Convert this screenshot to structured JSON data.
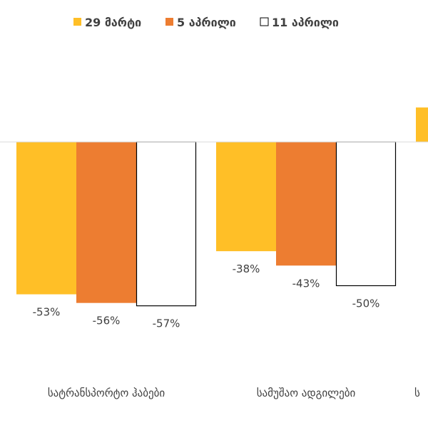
{
  "chart_data": {
    "type": "bar",
    "categories": [
      "სატრანსპორტო ჰაბები",
      "სამუშაო ადგილები",
      "ს"
    ],
    "series": [
      {
        "name": "29 მარტი",
        "color": "#FFBF27",
        "values": [
          -53,
          -38,
          12
        ],
        "labels": [
          "-53%",
          "-38%",
          ""
        ]
      },
      {
        "name": "5 აპრილი",
        "color": "#ED7D31",
        "values": [
          -56,
          -43,
          null
        ],
        "labels": [
          "-56%",
          "-43%",
          ""
        ]
      },
      {
        "name": "11 აპრილი",
        "color": "#FFFFFF",
        "values": [
          -57,
          -50,
          null
        ],
        "labels": [
          "-57%",
          "-50%",
          ""
        ]
      }
    ],
    "ylim": [
      -100,
      50
    ],
    "legend_position": "top",
    "grid": false,
    "outline_color": "#000000"
  }
}
